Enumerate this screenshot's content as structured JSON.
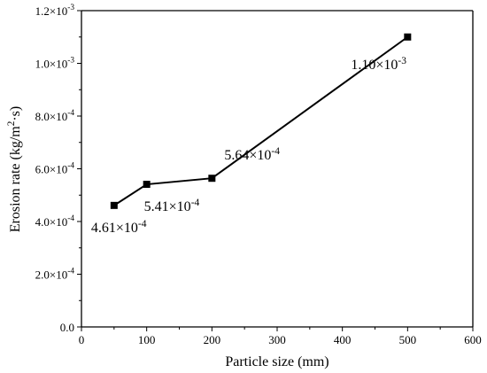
{
  "chart_data": {
    "type": "line",
    "xlabel": "Particle size (mm)",
    "ylabel_text": "Erosion rate (kg/m",
    "ylabel_sup": "2",
    "ylabel_tail": "·s)",
    "xlim": [
      0,
      600
    ],
    "ylim": [
      0,
      0.0012
    ],
    "x_ticks": [
      "0",
      "100",
      "200",
      "300",
      "400",
      "500",
      "600"
    ],
    "y_ticks": [
      {
        "mantissa": "0.0",
        "exp": ""
      },
      {
        "mantissa": "2.0×10",
        "exp": "-4"
      },
      {
        "mantissa": "4.0×10",
        "exp": "-4"
      },
      {
        "mantissa": "6.0×10",
        "exp": "-4"
      },
      {
        "mantissa": "8.0×10",
        "exp": "-4"
      },
      {
        "mantissa": "1.0×10",
        "exp": "-3"
      },
      {
        "mantissa": "1.2×10",
        "exp": "-3"
      }
    ],
    "grid": false,
    "series": [
      {
        "x": [
          50,
          100,
          200,
          500
        ],
        "y": [
          0.000461,
          0.000541,
          0.000564,
          0.0011
        ],
        "labels": [
          {
            "mantissa": "4.61×10",
            "exp": "-4"
          },
          {
            "mantissa": "5.41×10",
            "exp": "-4"
          },
          {
            "mantissa": "5.64×10",
            "exp": "-4"
          },
          {
            "mantissa": "1.10×10",
            "exp": "-3"
          }
        ],
        "color": "#000000",
        "marker": "square"
      }
    ]
  }
}
